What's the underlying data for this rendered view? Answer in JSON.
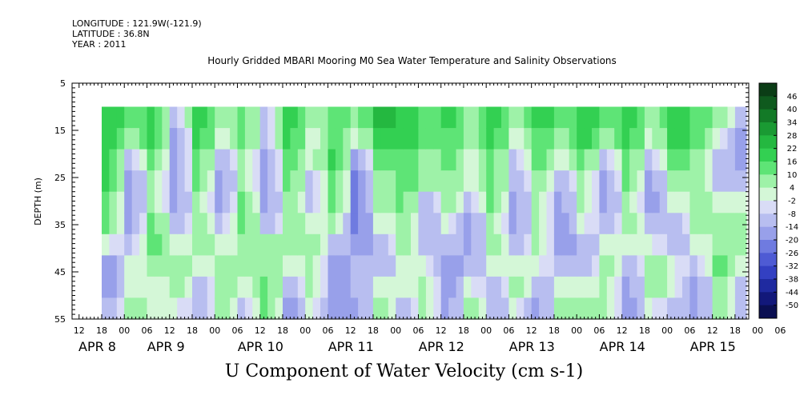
{
  "header": {
    "longitude": "LONGITUDE : 121.9W(-121.9)",
    "latitude": "LATITUDE : 36.8N",
    "year": "YEAR : 2011"
  },
  "chart_data": {
    "type": "heatmap",
    "title": "Hourly Gridded MBARI Mooring M0 Sea Water Temperature and Salinity Observations",
    "xlabel": "U Component of Water Velocity (cm s-1)",
    "ylabel": "DEPTH (m)",
    "y_ticks": [
      5,
      15,
      25,
      35,
      45,
      55
    ],
    "ylim": [
      55,
      5
    ],
    "data_depth_range": [
      10,
      55
    ],
    "x_range_hours": [
      "APR 8 06:00",
      "APR 15 09:00"
    ],
    "hour_ticks": [
      "12",
      "18",
      "00",
      "06",
      "12",
      "18",
      "00",
      "06",
      "12",
      "18",
      "00",
      "06",
      "12",
      "18",
      "00",
      "06",
      "12",
      "18",
      "00",
      "06",
      "12",
      "18",
      "00",
      "06",
      "12",
      "18",
      "00",
      "06",
      "12",
      "18",
      "00",
      "06"
    ],
    "date_labels": [
      "APR  8",
      "APR  9",
      "APR 10",
      "APR 11",
      "APR 12",
      "APR 13",
      "APR 14",
      "APR 15"
    ],
    "colorbar": {
      "levels": [
        46,
        40,
        34,
        28,
        22,
        16,
        10,
        4,
        -2,
        -8,
        -14,
        -20,
        -26,
        -32,
        -38,
        -44,
        -50
      ],
      "colors_top_to_bottom": [
        "#0b3d16",
        "#0f5a1e",
        "#137a27",
        "#1a9a33",
        "#24b840",
        "#33d052",
        "#5ee476",
        "#9ef2a8",
        "#d4f7d7",
        "#d9dcf6",
        "#b8bef0",
        "#98a0ea",
        "#6f7be0",
        "#4e5bd4",
        "#3340c2",
        "#1f2aa0",
        "#12187a",
        "#0a0f52"
      ]
    },
    "columns": [
      {
        "start_hour": 0,
        "band": [
          3,
          3,
          3,
          3,
          2,
          2,
          0,
          -2,
          -2,
          -1
        ]
      },
      {
        "start_hour": 6,
        "band": [
          2,
          1,
          -1,
          -2,
          -2,
          -2,
          -1,
          0,
          0,
          1
        ]
      },
      {
        "start_hour": 12,
        "band": [
          3,
          3,
          2,
          1,
          1,
          2,
          2,
          1,
          0,
          0
        ]
      },
      {
        "start_hour": 18,
        "band": [
          -1,
          -2,
          -2,
          -2,
          -2,
          -1,
          0,
          1,
          1,
          0
        ]
      },
      {
        "start_hour": 24,
        "band": [
          3,
          3,
          2,
          2,
          1,
          1,
          1,
          0,
          -1,
          -1
        ]
      },
      {
        "start_hour": 30,
        "band": [
          1,
          0,
          -1,
          -2,
          -2,
          -1,
          0,
          1,
          1,
          1
        ]
      },
      {
        "start_hour": 36,
        "band": [
          2,
          2,
          1,
          1,
          2,
          2,
          1,
          1,
          0,
          -1
        ]
      },
      {
        "start_hour": 42,
        "band": [
          -1,
          -1,
          -2,
          -2,
          -2,
          -1,
          1,
          1,
          2,
          2
        ]
      },
      {
        "start_hour": 48,
        "band": [
          3,
          3,
          2,
          2,
          1,
          1,
          1,
          0,
          -1,
          -2
        ]
      },
      {
        "start_hour": 54,
        "band": [
          1,
          0,
          0,
          -1,
          -1,
          0,
          1,
          1,
          1,
          0
        ]
      },
      {
        "start_hour": 60,
        "band": [
          2,
          2,
          3,
          2,
          2,
          1,
          -1,
          -2,
          -2,
          -2
        ]
      },
      {
        "start_hour": 66,
        "band": [
          1,
          0,
          -2,
          -3,
          -3,
          -3,
          -2,
          -1,
          -1,
          -2
        ]
      },
      {
        "start_hour": 72,
        "band": [
          4,
          3,
          2,
          1,
          1,
          0,
          -1,
          -1,
          0,
          1
        ]
      },
      {
        "start_hour": 78,
        "band": [
          3,
          3,
          2,
          2,
          2,
          1,
          1,
          0,
          0,
          -1
        ]
      },
      {
        "start_hour": 84,
        "band": [
          2,
          2,
          1,
          1,
          -1,
          -1,
          -1,
          0,
          1,
          1
        ]
      },
      {
        "start_hour": 90,
        "band": [
          3,
          2,
          2,
          1,
          1,
          0,
          -1,
          -2,
          -2,
          -2
        ]
      },
      {
        "start_hour": 96,
        "band": [
          1,
          1,
          0,
          0,
          -1,
          -2,
          -2,
          -1,
          0,
          1
        ]
      },
      {
        "start_hour": 102,
        "band": [
          3,
          3,
          2,
          2,
          2,
          1,
          1,
          0,
          -1,
          -1
        ]
      },
      {
        "start_hour": 108,
        "band": [
          1,
          0,
          -1,
          -1,
          -2,
          -2,
          -1,
          0,
          1,
          0
        ]
      },
      {
        "start_hour": 114,
        "band": [
          3,
          2,
          2,
          1,
          1,
          1,
          1,
          0,
          -1,
          -2
        ]
      },
      {
        "start_hour": 120,
        "band": [
          2,
          1,
          0,
          -1,
          -2,
          -2,
          -2,
          -1,
          0,
          1
        ]
      },
      {
        "start_hour": 126,
        "band": [
          3,
          3,
          2,
          1,
          1,
          0,
          -1,
          -1,
          0,
          1
        ]
      },
      {
        "start_hour": 132,
        "band": [
          2,
          1,
          -1,
          -2,
          -2,
          -1,
          0,
          1,
          1,
          1
        ]
      },
      {
        "start_hour": 138,
        "band": [
          3,
          3,
          2,
          2,
          1,
          1,
          0,
          -1,
          -2,
          -2
        ]
      },
      {
        "start_hour": 144,
        "band": [
          1,
          0,
          -1,
          -2,
          -2,
          -1,
          0,
          1,
          1,
          0
        ]
      },
      {
        "start_hour": 150,
        "band": [
          3,
          3,
          2,
          1,
          0,
          -1,
          -1,
          0,
          0,
          -1
        ]
      },
      {
        "start_hour": 156,
        "band": [
          2,
          2,
          1,
          1,
          1,
          1,
          0,
          -1,
          -2,
          -2
        ]
      },
      {
        "start_hour": 162,
        "band": [
          1,
          0,
          -1,
          -1,
          0,
          1,
          1,
          2,
          1,
          1
        ]
      },
      {
        "start_hour": 168,
        "band": [
          -1,
          -2,
          -2,
          -1,
          0,
          1,
          1,
          0,
          -1,
          -1
        ]
      }
    ]
  }
}
